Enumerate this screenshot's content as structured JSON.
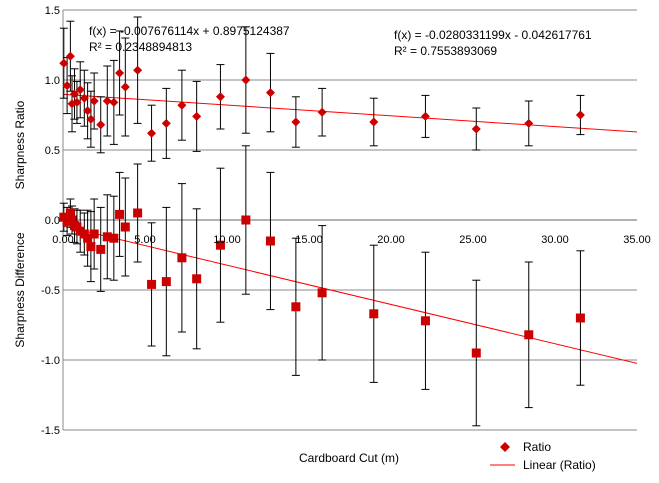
{
  "chart_data": {
    "type": "scatter",
    "xlabel": "Cardboard Cut (m)",
    "ylabel_upper": "Sharpness Ratio",
    "ylabel_lower": "Sharpness Difference",
    "xlim": [
      0,
      35
    ],
    "ylim": [
      -1.5,
      1.5
    ],
    "y_ticks": [
      "1.5",
      "1.0",
      "0.5",
      "0.0",
      "-0.5",
      "-1.0",
      "-1.5"
    ],
    "x_ticks": [
      "0.00",
      "5.00",
      "10.00",
      "15.00",
      "20.00",
      "25.00",
      "30.00",
      "35.00"
    ],
    "grid": true,
    "legend_position": "bottom-right",
    "legend": [
      {
        "label": "Ratio",
        "marker": "diamond",
        "color": "#cc0000"
      },
      {
        "label": "Linear (Ratio)",
        "marker": "line",
        "color": "#ff0000"
      }
    ],
    "annotations": {
      "fit_upper": {
        "equation": "f(x) = -0.007676114x + 0.8975124387",
        "r2": "R² = 0.2348894813"
      },
      "fit_lower": {
        "equation": "f(x) = -0.0280331199x - 0.042617761",
        "r2": "R² = 0.7553893069"
      }
    },
    "trendlines": [
      {
        "slope": -0.007676114,
        "intercept": 0.8975124387,
        "color": "#ff0000"
      },
      {
        "slope": -0.0280331199,
        "intercept": -0.042617761,
        "color": "#ff0000"
      }
    ],
    "series": [
      {
        "marker": "diamond",
        "color": "#cc0000",
        "points": [
          {
            "x": 0.05,
            "y": 1.12,
            "err": 0.25
          },
          {
            "x": 0.25,
            "y": 0.96,
            "err": 0.2
          },
          {
            "x": 0.45,
            "y": 1.17,
            "err": 0.25
          },
          {
            "x": 0.55,
            "y": 0.83,
            "err": 0.2
          },
          {
            "x": 0.7,
            "y": 0.9,
            "err": 0.18
          },
          {
            "x": 0.85,
            "y": 0.84,
            "err": 0.15
          },
          {
            "x": 1.05,
            "y": 0.93,
            "err": 0.2
          },
          {
            "x": 1.3,
            "y": 0.87,
            "err": 0.2
          },
          {
            "x": 1.5,
            "y": 0.78,
            "err": 0.2
          },
          {
            "x": 1.7,
            "y": 0.72,
            "err": 0.2
          },
          {
            "x": 1.9,
            "y": 0.85,
            "err": 0.2
          },
          {
            "x": 2.3,
            "y": 0.68,
            "err": 0.2
          },
          {
            "x": 2.7,
            "y": 0.85,
            "err": 0.25
          },
          {
            "x": 3.1,
            "y": 0.84,
            "err": 0.3
          },
          {
            "x": 3.45,
            "y": 1.05,
            "err": 0.3
          },
          {
            "x": 3.8,
            "y": 0.95,
            "err": 0.35
          },
          {
            "x": 4.55,
            "y": 1.07,
            "err": 0.38
          },
          {
            "x": 5.4,
            "y": 0.62,
            "err": 0.2
          },
          {
            "x": 6.3,
            "y": 0.69,
            "err": 0.25
          },
          {
            "x": 7.25,
            "y": 0.82,
            "err": 0.25
          },
          {
            "x": 8.15,
            "y": 0.74,
            "err": 0.25
          },
          {
            "x": 9.6,
            "y": 0.88,
            "err": 0.23
          },
          {
            "x": 11.15,
            "y": 1.0,
            "err": 0.38
          },
          {
            "x": 12.65,
            "y": 0.91,
            "err": 0.28
          },
          {
            "x": 14.2,
            "y": 0.7,
            "err": 0.18
          },
          {
            "x": 15.8,
            "y": 0.77,
            "err": 0.17
          },
          {
            "x": 18.95,
            "y": 0.7,
            "err": 0.17
          },
          {
            "x": 22.1,
            "y": 0.74,
            "err": 0.15
          },
          {
            "x": 25.2,
            "y": 0.65,
            "err": 0.15
          },
          {
            "x": 28.4,
            "y": 0.69,
            "err": 0.16
          },
          {
            "x": 31.55,
            "y": 0.75,
            "err": 0.14
          }
        ]
      },
      {
        "marker": "square",
        "color": "#cc0000",
        "points": [
          {
            "x": 0.05,
            "y": 0.02,
            "err": 0.1
          },
          {
            "x": 0.25,
            "y": -0.01,
            "err": 0.1
          },
          {
            "x": 0.45,
            "y": 0.05,
            "err": 0.1
          },
          {
            "x": 0.55,
            "y": 0.0,
            "err": 0.1
          },
          {
            "x": 0.7,
            "y": -0.04,
            "err": 0.12
          },
          {
            "x": 0.85,
            "y": -0.05,
            "err": 0.12
          },
          {
            "x": 1.05,
            "y": -0.08,
            "err": 0.15
          },
          {
            "x": 1.3,
            "y": -0.1,
            "err": 0.15
          },
          {
            "x": 1.5,
            "y": -0.13,
            "err": 0.2
          },
          {
            "x": 1.7,
            "y": -0.19,
            "err": 0.25
          },
          {
            "x": 1.9,
            "y": -0.1,
            "err": 0.25
          },
          {
            "x": 2.3,
            "y": -0.21,
            "err": 0.3
          },
          {
            "x": 2.7,
            "y": -0.12,
            "err": 0.3
          },
          {
            "x": 3.1,
            "y": -0.13,
            "err": 0.3
          },
          {
            "x": 3.45,
            "y": 0.04,
            "err": 0.3
          },
          {
            "x": 3.8,
            "y": -0.05,
            "err": 0.35
          },
          {
            "x": 4.55,
            "y": 0.05,
            "err": 0.35
          },
          {
            "x": 5.4,
            "y": -0.46,
            "err": 0.44
          },
          {
            "x": 6.3,
            "y": -0.44,
            "err": 0.53
          },
          {
            "x": 7.25,
            "y": -0.27,
            "err": 0.53
          },
          {
            "x": 8.15,
            "y": -0.42,
            "err": 0.5
          },
          {
            "x": 9.6,
            "y": -0.18,
            "err": 0.55
          },
          {
            "x": 11.15,
            "y": 0.0,
            "err": 0.53
          },
          {
            "x": 12.65,
            "y": -0.15,
            "err": 0.49
          },
          {
            "x": 14.2,
            "y": -0.62,
            "err": 0.49
          },
          {
            "x": 15.8,
            "y": -0.52,
            "err": 0.48
          },
          {
            "x": 18.95,
            "y": -0.67,
            "err": 0.49
          },
          {
            "x": 22.1,
            "y": -0.72,
            "err": 0.49
          },
          {
            "x": 25.2,
            "y": -0.95,
            "err": 0.52
          },
          {
            "x": 28.4,
            "y": -0.82,
            "err": 0.52
          },
          {
            "x": 31.55,
            "y": -0.7,
            "err": 0.48
          }
        ]
      }
    ]
  }
}
